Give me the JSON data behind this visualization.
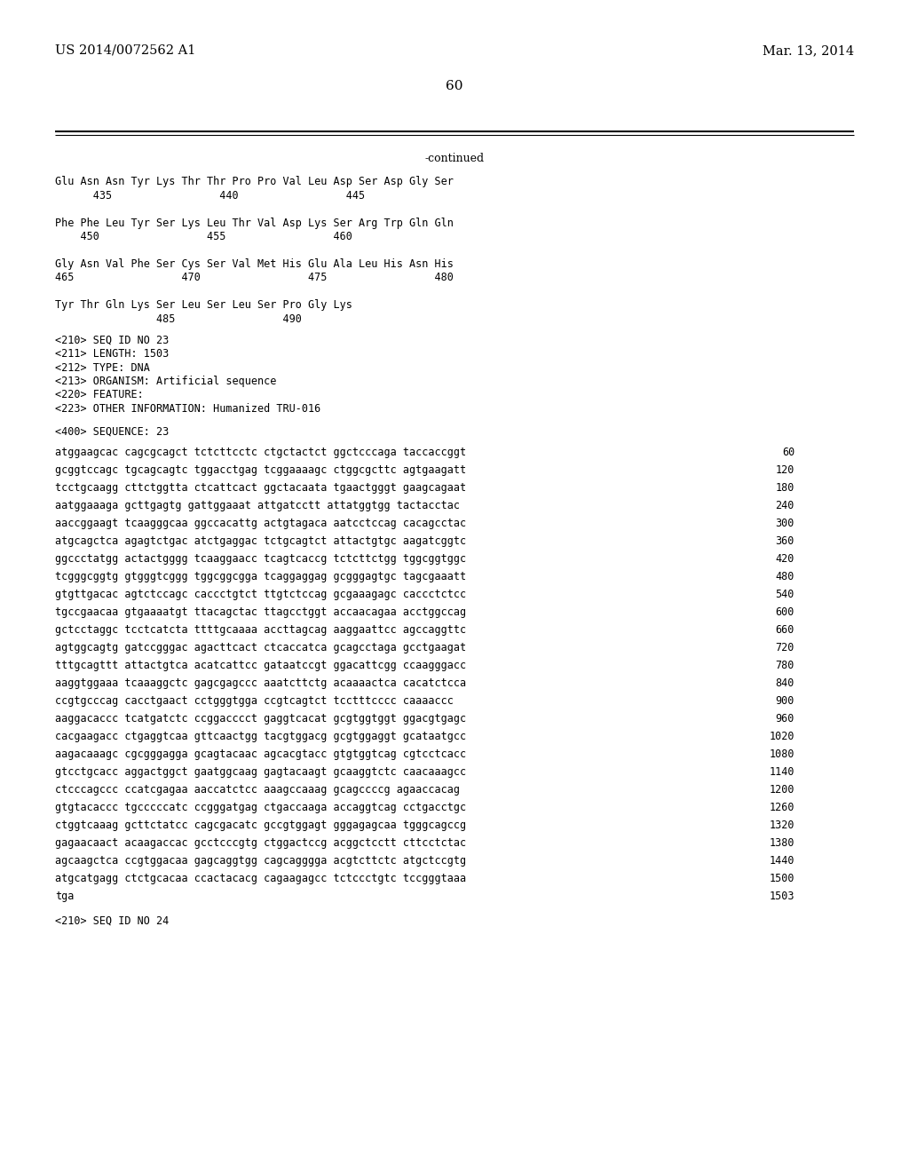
{
  "header_left": "US 2014/0072562 A1",
  "header_right": "Mar. 13, 2014",
  "page_number": "60",
  "continued_label": "-continued",
  "background_color": "#ffffff",
  "text_color": "#000000",
  "amino_acid_lines": [
    "Glu Asn Asn Tyr Lys Thr Thr Pro Pro Val Leu Asp Ser Asp Gly Ser",
    "      435                 440                 445",
    "",
    "Phe Phe Leu Tyr Ser Lys Leu Thr Val Asp Lys Ser Arg Trp Gln Gln",
    "    450                 455                 460",
    "",
    "Gly Asn Val Phe Ser Cys Ser Val Met His Glu Ala Leu His Asn His",
    "465                 470                 475                 480",
    "",
    "Tyr Thr Gln Lys Ser Leu Ser Leu Ser Pro Gly Lys",
    "                485                 490"
  ],
  "seq_info_lines": [
    "<210> SEQ ID NO 23",
    "<211> LENGTH: 1503",
    "<212> TYPE: DNA",
    "<213> ORGANISM: Artificial sequence",
    "<220> FEATURE:",
    "<223> OTHER INFORMATION: Humanized TRU-016"
  ],
  "seq400_label": "<400> SEQUENCE: 23",
  "dna_lines": [
    [
      "atggaagcac cagcgcagct tctcttcctc ctgctactct ggctcccaga taccaccggt",
      "60"
    ],
    [
      "gcggtccagc tgcagcagtc tggacctgag tcggaaaagc ctggcgcttc agtgaagatt",
      "120"
    ],
    [
      "tcctgcaagg cttctggtta ctcattcact ggctacaata tgaactgggt gaagcagaat",
      "180"
    ],
    [
      "aatggaaaga gcttgagtg gattggaaat attgatcctt attatggtgg tactacctac",
      "240"
    ],
    [
      "aaccggaagt tcaagggcaa ggccacattg actgtagaca aatcctccag cacagcctac",
      "300"
    ],
    [
      "atgcagctca agagtctgac atctgaggac tctgcagtct attactgtgc aagatcggtc",
      "360"
    ],
    [
      "ggccctatgg actactgggg tcaaggaacc tcagtcaccg tctcttctgg tggcggtggc",
      "420"
    ],
    [
      "tcgggcggtg gtgggtcggg tggcggcgga tcaggaggag gcgggagtgc tagcgaaatt",
      "480"
    ],
    [
      "gtgttgacac agtctccagc caccctgtct ttgtctccag gcgaaagagc caccctctcc",
      "540"
    ],
    [
      "tgccgaacaa gtgaaaatgt ttacagctac ttagcctggt accaacagaa acctggccag",
      "600"
    ],
    [
      "gctcctaggc tcctcatcta ttttgcaaaa accttagcag aaggaattcc agccaggttc",
      "660"
    ],
    [
      "agtggcagtg gatccgggac agacttcact ctcaccatca gcagcctaga gcctgaagat",
      "720"
    ],
    [
      "tttgcagttt attactgtca acatcattcc gataatccgt ggacattcgg ccaagggacc",
      "780"
    ],
    [
      "aaggtggaaa tcaaaggctc gagcgagccc aaatcttctg acaaaactca cacatctcca",
      "840"
    ],
    [
      "ccgtgcccag cacctgaact cctgggtgga ccgtcagtct tcctttcccc caaaaccc",
      "900"
    ],
    [
      "aaggacaccc tcatgatctc ccggacccct gaggtcacat gcgtggtggt ggacgtgagc",
      "960"
    ],
    [
      "cacgaagacc ctgaggtcaa gttcaactgg tacgtggacg gcgtggaggt gcataatgcc",
      "1020"
    ],
    [
      "aagacaaagc cgcgggagga gcagtacaac agcacgtacc gtgtggtcag cgtcctcacc",
      "1080"
    ],
    [
      "gtcctgcacc aggactggct gaatggcaag gagtacaagt gcaaggtctc caacaaagcc",
      "1140"
    ],
    [
      "ctcccagccc ccatcgagaa aaccatctcc aaagccaaag gcagccccg agaaccacag",
      "1200"
    ],
    [
      "gtgtacaccc tgcccccatc ccgggatgag ctgaccaaga accaggtcag cctgacctgc",
      "1260"
    ],
    [
      "ctggtcaaag gcttctatcc cagcgacatc gccgtggagt gggagagcaa tgggcagccg",
      "1320"
    ],
    [
      "gagaacaact acaagaccac gcctcccgtg ctggactccg acggctcctt cttcctctac",
      "1380"
    ],
    [
      "agcaagctca ccgtggacaa gagcaggtgg cagcagggga acgtcttctc atgctccgtg",
      "1440"
    ],
    [
      "atgcatgagg ctctgcacaa ccactacacg cagaagagcc tctccctgtc tccgggtaaa",
      "1500"
    ],
    [
      "tga",
      "1503"
    ]
  ],
  "footer_seq_label": "<210> SEQ ID NO 24"
}
